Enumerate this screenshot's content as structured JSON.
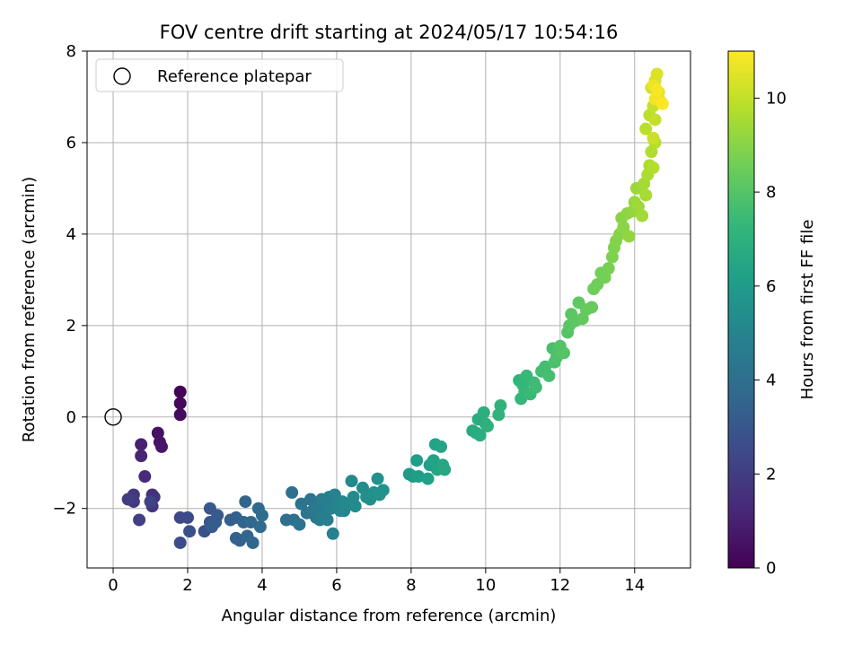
{
  "chart_data": {
    "type": "scatter",
    "title": "FOV centre drift starting at 2024/05/17 10:54:16",
    "xlabel": "Angular distance from reference (arcmin)",
    "ylabel": "Rotation from reference (arcmin)",
    "colorbar_label": "Hours from first FF file",
    "xlim": [
      -0.7,
      15.5
    ],
    "ylim": [
      -3.3,
      8.0
    ],
    "x_ticks": [
      "0",
      "2",
      "4",
      "6",
      "8",
      "10",
      "12",
      "14"
    ],
    "y_ticks": [
      "−2",
      "0",
      "2",
      "4",
      "6",
      "8"
    ],
    "colorbar_ticks": [
      "0",
      "2",
      "4",
      "6",
      "8",
      "10"
    ],
    "color_range": [
      0,
      11
    ],
    "colormap": "viridis",
    "grid": true,
    "legend": {
      "position": "top-left",
      "entries": [
        "Reference platepar"
      ]
    },
    "reference": {
      "x": 0,
      "y": 0
    },
    "points": [
      [
        1.8,
        0.55,
        0.1
      ],
      [
        1.8,
        0.3,
        0.2
      ],
      [
        1.8,
        0.05,
        0.3
      ],
      [
        1.2,
        -0.35,
        0.5
      ],
      [
        1.25,
        -0.55,
        0.6
      ],
      [
        1.3,
        -0.65,
        0.7
      ],
      [
        0.75,
        -0.6,
        1.0
      ],
      [
        0.75,
        -0.85,
        1.1
      ],
      [
        0.85,
        -1.3,
        1.3
      ],
      [
        1.05,
        -1.7,
        1.5
      ],
      [
        1.1,
        -1.75,
        1.6
      ],
      [
        1.05,
        -1.95,
        1.7
      ],
      [
        0.55,
        -1.7,
        1.8
      ],
      [
        0.55,
        -1.85,
        1.9
      ],
      [
        0.4,
        -1.8,
        2.0
      ],
      [
        0.7,
        -2.25,
        2.1
      ],
      [
        1.0,
        -1.85,
        2.2
      ],
      [
        1.8,
        -2.2,
        2.4
      ],
      [
        2.0,
        -2.2,
        2.5
      ],
      [
        1.8,
        -2.75,
        2.6
      ],
      [
        2.05,
        -2.5,
        2.7
      ],
      [
        2.45,
        -2.5,
        2.8
      ],
      [
        2.6,
        -2.3,
        2.9
      ],
      [
        2.6,
        -2.0,
        3.0
      ],
      [
        2.8,
        -2.15,
        3.1
      ],
      [
        2.75,
        -2.3,
        3.15
      ],
      [
        2.65,
        -2.4,
        3.2
      ],
      [
        3.15,
        -2.25,
        3.3
      ],
      [
        3.3,
        -2.2,
        3.35
      ],
      [
        3.3,
        -2.65,
        3.4
      ],
      [
        3.4,
        -2.7,
        3.45
      ],
      [
        3.5,
        -2.3,
        3.5
      ],
      [
        3.55,
        -1.85,
        3.55
      ],
      [
        3.6,
        -2.6,
        3.6
      ],
      [
        3.7,
        -2.3,
        3.65
      ],
      [
        3.75,
        -2.75,
        3.7
      ],
      [
        3.9,
        -2.0,
        3.75
      ],
      [
        3.95,
        -2.4,
        3.8
      ],
      [
        4.0,
        -2.15,
        3.85
      ],
      [
        4.65,
        -2.25,
        4.0
      ],
      [
        4.8,
        -1.65,
        4.05
      ],
      [
        4.85,
        -2.25,
        4.1
      ],
      [
        5.0,
        -2.35,
        4.15
      ],
      [
        5.05,
        -1.9,
        4.2
      ],
      [
        5.2,
        -2.1,
        4.25
      ],
      [
        5.3,
        -1.8,
        4.3
      ],
      [
        5.35,
        -2.05,
        4.35
      ],
      [
        5.45,
        -2.2,
        4.4
      ],
      [
        5.5,
        -1.95,
        4.45
      ],
      [
        5.55,
        -2.25,
        4.5
      ],
      [
        5.6,
        -1.8,
        4.55
      ],
      [
        5.65,
        -2.1,
        4.6
      ],
      [
        5.7,
        -1.9,
        4.65
      ],
      [
        5.75,
        -2.25,
        4.7
      ],
      [
        5.8,
        -1.75,
        4.75
      ],
      [
        5.85,
        -2.0,
        4.8
      ],
      [
        5.9,
        -2.55,
        4.85
      ],
      [
        5.95,
        -1.7,
        4.9
      ],
      [
        6.0,
        -1.95,
        4.95
      ],
      [
        6.1,
        -2.05,
        5.0
      ],
      [
        6.15,
        -1.85,
        5.05
      ],
      [
        6.2,
        -2.05,
        5.1
      ],
      [
        6.3,
        -1.9,
        5.15
      ],
      [
        6.4,
        -1.4,
        5.2
      ],
      [
        6.45,
        -1.75,
        5.25
      ],
      [
        6.5,
        -1.95,
        5.3
      ],
      [
        6.7,
        -1.55,
        5.35
      ],
      [
        6.8,
        -1.75,
        5.4
      ],
      [
        6.9,
        -1.8,
        5.45
      ],
      [
        7.0,
        -1.65,
        5.5
      ],
      [
        7.1,
        -1.35,
        5.55
      ],
      [
        7.15,
        -1.7,
        5.6
      ],
      [
        7.25,
        -1.6,
        5.65
      ],
      [
        7.95,
        -1.25,
        6.0
      ],
      [
        8.05,
        -1.3,
        6.05
      ],
      [
        8.15,
        -0.95,
        6.1
      ],
      [
        8.2,
        -1.3,
        6.15
      ],
      [
        8.45,
        -1.35,
        6.2
      ],
      [
        8.5,
        -1.05,
        6.25
      ],
      [
        8.6,
        -0.95,
        6.3
      ],
      [
        8.65,
        -0.6,
        6.35
      ],
      [
        8.7,
        -1.15,
        6.4
      ],
      [
        8.8,
        -0.65,
        6.45
      ],
      [
        8.85,
        -1.05,
        6.5
      ],
      [
        8.9,
        -1.15,
        6.55
      ],
      [
        9.65,
        -0.3,
        6.7
      ],
      [
        9.75,
        -0.35,
        6.75
      ],
      [
        9.8,
        -0.05,
        6.8
      ],
      [
        9.85,
        -0.4,
        6.85
      ],
      [
        9.95,
        0.1,
        6.9
      ],
      [
        10.0,
        -0.15,
        6.95
      ],
      [
        10.05,
        -0.2,
        7.0
      ],
      [
        10.35,
        0.05,
        7.05
      ],
      [
        10.4,
        0.25,
        7.1
      ],
      [
        10.9,
        0.8,
        7.2
      ],
      [
        10.95,
        0.4,
        7.25
      ],
      [
        11.0,
        0.7,
        7.3
      ],
      [
        11.05,
        0.55,
        7.35
      ],
      [
        11.1,
        0.9,
        7.4
      ],
      [
        11.2,
        0.5,
        7.45
      ],
      [
        11.3,
        0.75,
        7.5
      ],
      [
        11.35,
        0.65,
        7.55
      ],
      [
        11.5,
        1.0,
        7.6
      ],
      [
        11.6,
        1.1,
        7.65
      ],
      [
        11.7,
        0.9,
        7.7
      ],
      [
        11.8,
        1.5,
        7.75
      ],
      [
        11.85,
        1.2,
        7.8
      ],
      [
        11.9,
        1.3,
        7.85
      ],
      [
        11.95,
        1.45,
        7.9
      ],
      [
        12.0,
        1.55,
        7.95
      ],
      [
        12.1,
        1.4,
        8.0
      ],
      [
        12.2,
        1.85,
        8.05
      ],
      [
        12.25,
        2.0,
        8.1
      ],
      [
        12.3,
        2.25,
        8.15
      ],
      [
        12.4,
        2.1,
        8.2
      ],
      [
        12.5,
        2.5,
        8.25
      ],
      [
        12.6,
        2.15,
        8.3
      ],
      [
        12.7,
        2.35,
        8.35
      ],
      [
        12.85,
        2.4,
        8.4
      ],
      [
        12.9,
        2.8,
        8.5
      ],
      [
        13.0,
        2.9,
        8.55
      ],
      [
        13.1,
        3.15,
        8.6
      ],
      [
        13.2,
        3.05,
        8.65
      ],
      [
        13.3,
        3.25,
        8.7
      ],
      [
        13.4,
        3.5,
        8.8
      ],
      [
        13.45,
        3.7,
        8.85
      ],
      [
        13.5,
        3.85,
        8.9
      ],
      [
        13.6,
        4.0,
        8.95
      ],
      [
        13.65,
        4.35,
        9.0
      ],
      [
        13.7,
        4.15,
        9.05
      ],
      [
        13.8,
        4.45,
        9.1
      ],
      [
        13.85,
        3.95,
        9.15
      ],
      [
        13.95,
        4.5,
        9.2
      ],
      [
        14.0,
        4.7,
        9.3
      ],
      [
        14.05,
        5.0,
        9.35
      ],
      [
        14.1,
        4.6,
        9.4
      ],
      [
        14.2,
        4.4,
        9.45
      ],
      [
        14.25,
        5.1,
        9.5
      ],
      [
        14.3,
        4.85,
        9.55
      ],
      [
        14.35,
        5.3,
        9.6
      ],
      [
        14.4,
        5.5,
        9.65
      ],
      [
        14.45,
        5.8,
        9.7
      ],
      [
        14.5,
        5.45,
        9.75
      ],
      [
        14.55,
        6.0,
        9.8
      ],
      [
        14.3,
        6.3,
        9.85
      ],
      [
        14.4,
        6.6,
        9.9
      ],
      [
        14.5,
        6.8,
        10.0
      ],
      [
        14.55,
        6.5,
        10.05
      ],
      [
        14.6,
        7.0,
        10.1
      ],
      [
        14.5,
        6.1,
        10.15
      ],
      [
        14.45,
        7.2,
        10.2
      ],
      [
        14.55,
        7.35,
        10.3
      ],
      [
        14.6,
        7.5,
        10.4
      ],
      [
        14.65,
        7.1,
        10.5
      ],
      [
        14.7,
        6.9,
        10.6
      ],
      [
        14.5,
        7.25,
        10.7
      ],
      [
        14.55,
        6.95,
        10.8
      ],
      [
        14.6,
        7.15,
        10.9
      ],
      [
        14.75,
        6.85,
        11.0
      ]
    ]
  }
}
